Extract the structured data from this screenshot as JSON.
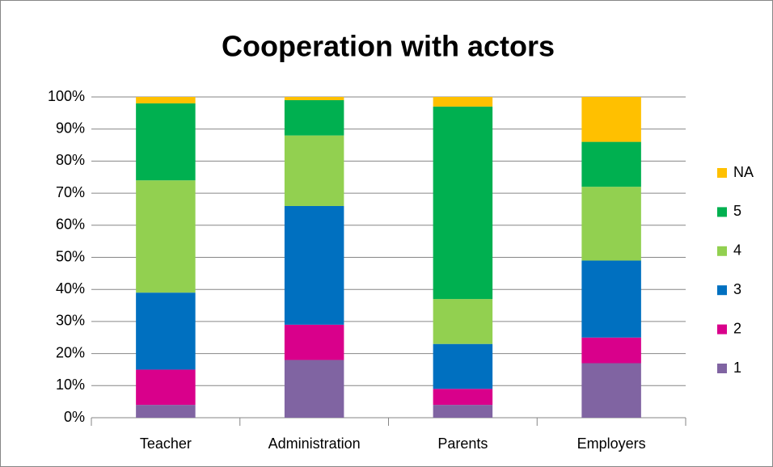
{
  "chart_data": {
    "type": "stacked_bar",
    "title": "Cooperation with actors",
    "categories": [
      "Teacher",
      "Administration",
      "Parents",
      "Employers"
    ],
    "series": [
      {
        "name": "1",
        "color": "#8064a2",
        "values": [
          4,
          18,
          4,
          17
        ]
      },
      {
        "name": "2",
        "color": "#d9008b",
        "values": [
          11,
          11,
          5,
          8
        ]
      },
      {
        "name": "3",
        "color": "#0070c0",
        "values": [
          24,
          37,
          14,
          24
        ]
      },
      {
        "name": "4",
        "color": "#92d050",
        "values": [
          35,
          22,
          14,
          23
        ]
      },
      {
        "name": "5",
        "color": "#00b050",
        "values": [
          24,
          11,
          60,
          14
        ]
      },
      {
        "name": "NA",
        "color": "#ffc000",
        "values": [
          2,
          1,
          3,
          14
        ]
      }
    ],
    "ylim": [
      0,
      100
    ],
    "yticks": [
      {
        "value": 0,
        "label": "0%"
      },
      {
        "value": 10,
        "label": "10%"
      },
      {
        "value": 20,
        "label": "20%"
      },
      {
        "value": 30,
        "label": "30%"
      },
      {
        "value": 40,
        "label": "40%"
      },
      {
        "value": 50,
        "label": "50%"
      },
      {
        "value": 60,
        "label": "60%"
      },
      {
        "value": 70,
        "label": "70%"
      },
      {
        "value": 80,
        "label": "80%"
      },
      {
        "value": 90,
        "label": "90%"
      },
      {
        "value": 100,
        "label": "100%"
      }
    ],
    "grid": true,
    "legend": "right"
  }
}
